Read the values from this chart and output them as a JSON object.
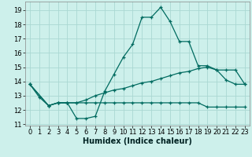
{
  "xlabel": "Humidex (Indice chaleur)",
  "background_color": "#cdf0eb",
  "grid_color": "#aad8d2",
  "line_color": "#006b60",
  "xlim": [
    -0.5,
    23.5
  ],
  "ylim": [
    10.9,
    19.6
  ],
  "xticks": [
    0,
    1,
    2,
    3,
    4,
    5,
    6,
    7,
    8,
    9,
    10,
    11,
    12,
    13,
    14,
    15,
    16,
    17,
    18,
    19,
    20,
    21,
    22,
    23
  ],
  "yticks": [
    11,
    12,
    13,
    14,
    15,
    16,
    17,
    18,
    19
  ],
  "curve1_x": [
    0,
    1,
    2,
    3,
    4,
    5,
    6,
    7,
    8,
    9,
    10,
    11,
    12,
    13,
    14,
    15,
    16,
    17,
    18,
    19,
    20,
    21,
    22,
    23
  ],
  "curve1_y": [
    13.8,
    12.9,
    12.3,
    12.5,
    12.5,
    11.4,
    11.4,
    11.55,
    13.3,
    14.5,
    15.7,
    16.6,
    18.5,
    18.5,
    19.2,
    18.2,
    16.8,
    16.8,
    15.1,
    15.1,
    14.8,
    14.1,
    13.8,
    13.8
  ],
  "curve2_x": [
    0,
    2,
    3,
    4,
    5,
    6,
    7,
    8,
    9,
    10,
    11,
    12,
    13,
    14,
    15,
    16,
    17,
    18,
    19,
    20,
    21,
    22,
    23
  ],
  "curve2_y": [
    13.8,
    12.3,
    12.5,
    12.5,
    12.5,
    12.5,
    12.5,
    12.5,
    12.5,
    12.5,
    12.5,
    12.5,
    12.5,
    12.5,
    12.5,
    12.5,
    12.5,
    12.5,
    12.2,
    12.2,
    12.2,
    12.2,
    12.2
  ],
  "curve3_x": [
    0,
    2,
    3,
    4,
    5,
    6,
    7,
    8,
    9,
    10,
    11,
    12,
    13,
    14,
    15,
    16,
    17,
    18,
    19,
    20,
    21,
    22,
    23
  ],
  "curve3_y": [
    13.8,
    12.3,
    12.5,
    12.5,
    12.5,
    12.7,
    13.0,
    13.2,
    13.4,
    13.5,
    13.7,
    13.9,
    14.0,
    14.2,
    14.4,
    14.6,
    14.7,
    14.9,
    15.0,
    14.8,
    14.8,
    14.8,
    13.8
  ]
}
